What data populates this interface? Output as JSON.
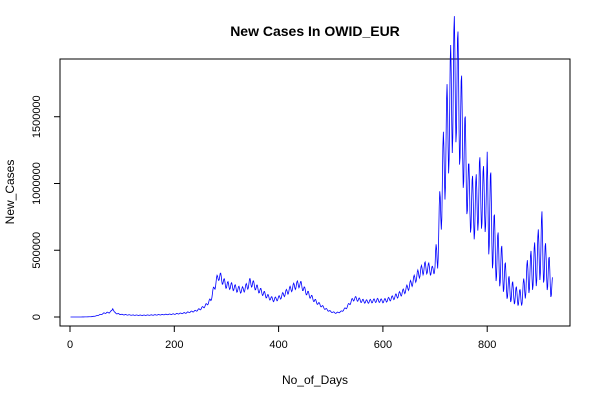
{
  "chart_data": {
    "type": "line",
    "title": "New Cases In OWID_EUR",
    "xlabel": "No_of_Days",
    "ylabel": "New_Cases",
    "xlim": [
      0,
      930
    ],
    "ylim": [
      0,
      1850000
    ],
    "x_ticks": [
      0,
      200,
      400,
      600,
      800
    ],
    "y_ticks": [
      0,
      500000,
      1000000,
      1500000
    ],
    "x_tick_labels": [
      "0",
      "200",
      "400",
      "600",
      "800"
    ],
    "y_tick_labels": [
      "0",
      "500000",
      "1000000",
      "1500000"
    ],
    "grid": false,
    "legend": "none",
    "series": [
      {
        "color": "#0000ff",
        "weekly_oscillation_days": 7,
        "x": [
          1,
          20,
          40,
          50,
          60,
          65,
          70,
          75,
          80,
          82,
          85,
          90,
          100,
          120,
          140,
          160,
          180,
          200,
          220,
          240,
          250,
          260,
          270,
          275,
          280,
          285,
          290,
          295,
          300,
          310,
          320,
          330,
          340,
          345,
          350,
          360,
          370,
          380,
          390,
          400,
          410,
          420,
          430,
          435,
          440,
          445,
          450,
          460,
          470,
          480,
          490,
          500,
          510,
          520,
          530,
          540,
          545,
          550,
          560,
          570,
          580,
          590,
          600,
          610,
          620,
          630,
          640,
          650,
          660,
          670,
          680,
          690,
          695,
          700,
          705,
          710,
          715,
          720,
          725,
          730,
          735,
          740,
          745,
          750,
          755,
          760,
          765,
          770,
          775,
          780,
          785,
          790,
          795,
          800,
          805,
          810,
          815,
          820,
          825,
          830,
          835,
          840,
          845,
          850,
          855,
          860,
          865,
          870,
          875,
          880,
          885,
          890,
          895,
          900,
          905,
          910,
          915,
          920,
          925
        ],
        "y": [
          0,
          0,
          2000,
          8000,
          20000,
          28000,
          32000,
          33000,
          45000,
          70000,
          35000,
          25000,
          18000,
          14000,
          13000,
          15000,
          18000,
          22000,
          30000,
          45000,
          60000,
          85000,
          130000,
          200000,
          260000,
          310000,
          290000,
          260000,
          240000,
          230000,
          210000,
          200000,
          230000,
          260000,
          250000,
          210000,
          180000,
          150000,
          130000,
          140000,
          170000,
          200000,
          230000,
          240000,
          250000,
          230000,
          200000,
          160000,
          120000,
          90000,
          60000,
          40000,
          30000,
          40000,
          70000,
          120000,
          140000,
          135000,
          120000,
          115000,
          120000,
          125000,
          120000,
          130000,
          145000,
          165000,
          190000,
          230000,
          280000,
          330000,
          370000,
          360000,
          340000,
          380000,
          500000,
          800000,
          1050000,
          1250000,
          1450000,
          1600000,
          1750000,
          1800000,
          1650000,
          1450000,
          1300000,
          1100000,
          900000,
          850000,
          800000,
          850000,
          950000,
          900000,
          880000,
          860000,
          820000,
          650000,
          500000,
          450000,
          400000,
          350000,
          280000,
          220000,
          200000,
          180000,
          160000,
          150000,
          140000,
          200000,
          280000,
          320000,
          350000,
          380000,
          420000,
          480000,
          550000,
          400000,
          360000,
          300000,
          220000
        ]
      }
    ]
  }
}
